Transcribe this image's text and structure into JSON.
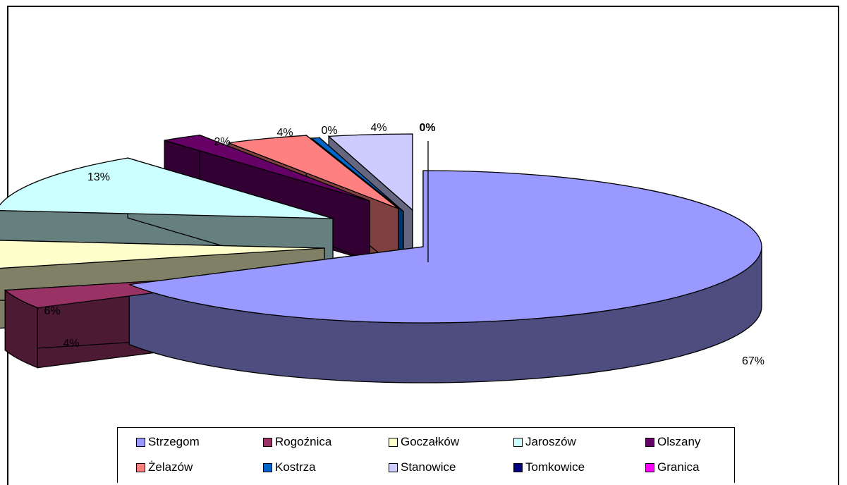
{
  "chart_data": {
    "type": "pie",
    "variant": "3d-exploded",
    "title": "",
    "legend_position": "bottom",
    "slices": [
      {
        "label": "Strzegom",
        "percent_label": "67%",
        "value": 67,
        "color": "#9999ff",
        "side_color": "#4d4d80"
      },
      {
        "label": "Rogoźnica",
        "percent_label": "4%",
        "value": 4,
        "color": "#993366",
        "side_color": "#4d1a33"
      },
      {
        "label": "Goczałków",
        "percent_label": "6%",
        "value": 6,
        "color": "#ffffcc",
        "side_color": "#808066"
      },
      {
        "label": "Jaroszów",
        "percent_label": "13%",
        "value": 13,
        "color": "#ccffff",
        "side_color": "#668080"
      },
      {
        "label": "Olszany",
        "percent_label": "2%",
        "value": 2,
        "color": "#660066",
        "side_color": "#330033"
      },
      {
        "label": "Żelazów",
        "percent_label": "4%",
        "value": 4,
        "color": "#ff8080",
        "side_color": "#804040"
      },
      {
        "label": "Kostrza",
        "percent_label": "0%",
        "value": 0.4,
        "color": "#0066cc",
        "side_color": "#003366"
      },
      {
        "label": "Stanowice",
        "percent_label": "4%",
        "value": 4,
        "color": "#ccccff",
        "side_color": "#666680"
      },
      {
        "label": "Tomkowice",
        "percent_label": "0%",
        "value": 0,
        "color": "#000080",
        "side_color": "#000040"
      },
      {
        "label": "Granica",
        "percent_label": "0%",
        "value": 0,
        "color": "#ff00ff",
        "side_color": "#800080"
      }
    ]
  }
}
